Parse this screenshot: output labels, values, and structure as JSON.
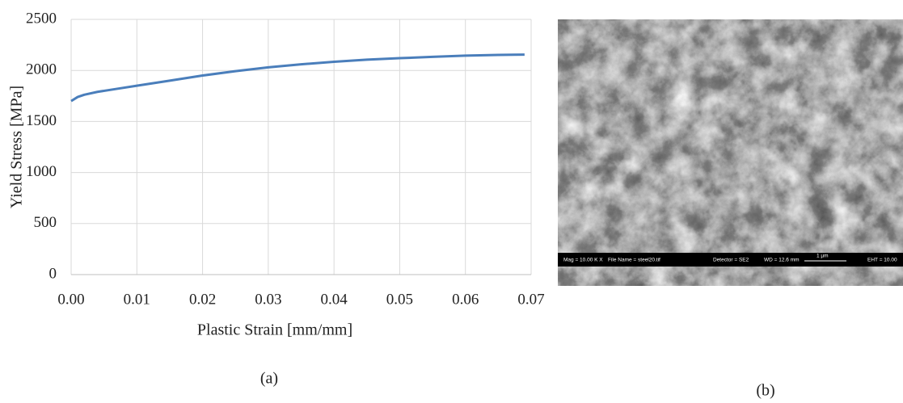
{
  "chart_data": {
    "type": "line",
    "x_label": "Plastic Strain [mm/mm]",
    "y_label": "Yield Stress [MPa]",
    "x": [
      0,
      0.001,
      0.002,
      0.004,
      0.007,
      0.01,
      0.015,
      0.02,
      0.025,
      0.03,
      0.035,
      0.04,
      0.045,
      0.05,
      0.055,
      0.06,
      0.065,
      0.069
    ],
    "values": [
      1700,
      1740,
      1762,
      1790,
      1820,
      1850,
      1900,
      1950,
      1993,
      2030,
      2060,
      2085,
      2105,
      2120,
      2133,
      2145,
      2152,
      2155
    ],
    "color": "#4a7ebb",
    "xlim": [
      0,
      0.07
    ],
    "xticks": [
      {
        "value": 0,
        "label": "0.00"
      },
      0.01,
      0.02,
      0.03,
      0.04,
      0.05,
      0.06,
      0.07
    ],
    "ylim": [
      0,
      2500
    ],
    "yticks": [
      0,
      500,
      1000,
      1500,
      2000,
      2500
    ],
    "grid": true
  },
  "panel_labels": [
    "(a)",
    "(b)"
  ],
  "sem_image": {
    "info_bar": [
      "Mag = 10.00 K X",
      "File Name = steel20.tif",
      "Detector = SE2",
      "WD = 12.6 mm",
      "1 µm",
      "EHT = 10.00"
    ]
  }
}
